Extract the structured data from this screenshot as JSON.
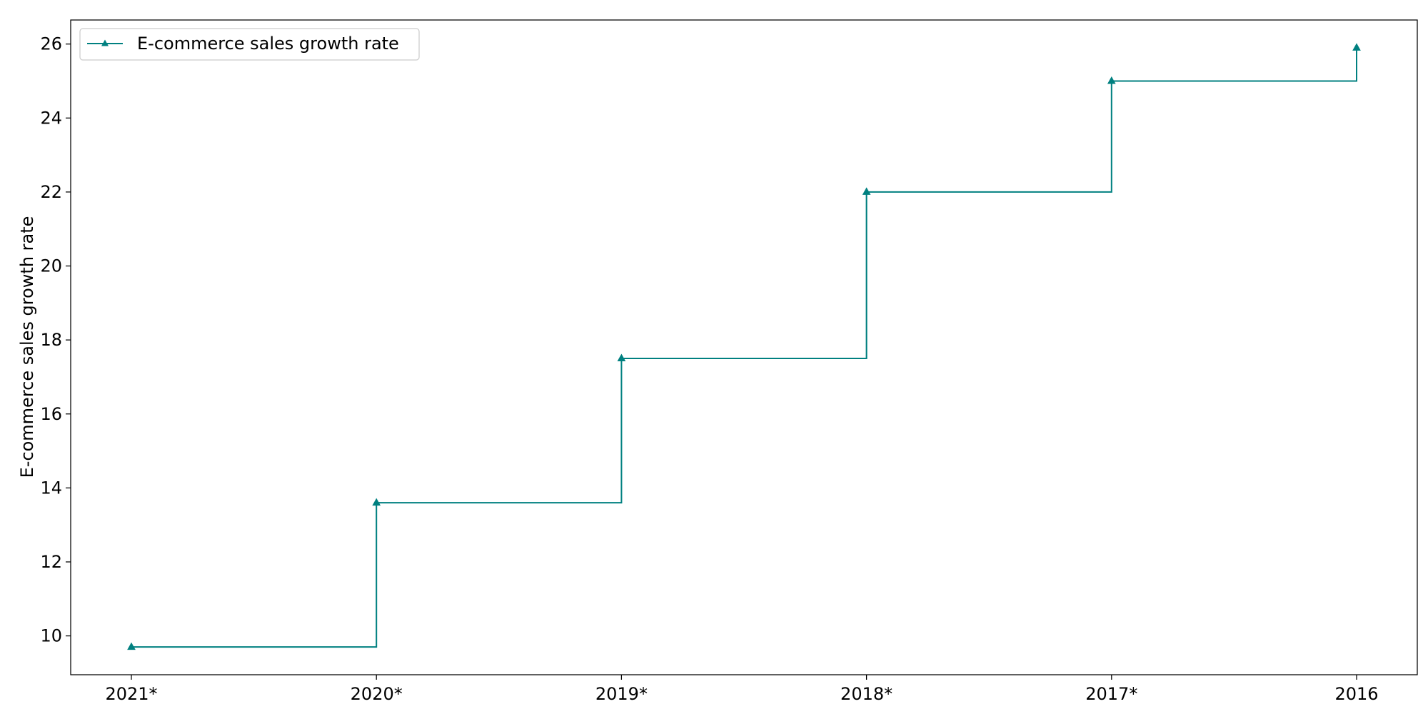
{
  "chart_data": {
    "type": "line",
    "line_style": "step-post",
    "marker": "triangle-up",
    "title": "",
    "xlabel": "",
    "ylabel": "E-commerce sales growth rate",
    "categories": [
      "2021*",
      "2020*",
      "2019*",
      "2018*",
      "2017*",
      "2016"
    ],
    "series": [
      {
        "name": "E-commerce sales growth rate",
        "values": [
          9.7,
          13.6,
          17.5,
          22.0,
          25.0,
          25.9
        ],
        "color": "#008080"
      }
    ],
    "ylim": [
      8.95,
      26.65
    ],
    "yticks": [
      10,
      12,
      14,
      16,
      18,
      20,
      22,
      24,
      26
    ],
    "grid": false,
    "legend_position": "top-left"
  }
}
